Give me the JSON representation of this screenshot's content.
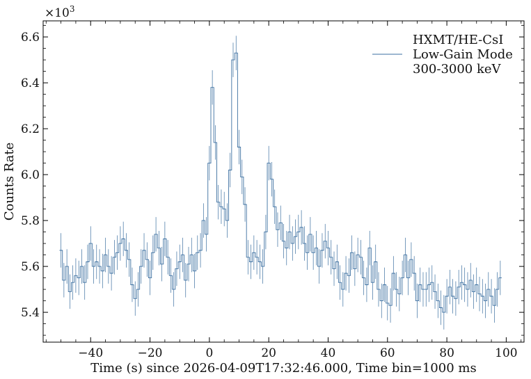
{
  "chart_data": {
    "type": "line",
    "drawstyle": "steps-mid",
    "xlabel": "Time (s) since 2026-04-09T17:32:46.000, Time bin=1000 ms",
    "ylabel": "Counts Rate",
    "y_offset_base": "×10",
    "y_offset_exp": "3",
    "xlim": [
      -56,
      106
    ],
    "ylim": [
      5.27,
      6.67
    ],
    "x_ticks": [
      -40,
      -20,
      0,
      20,
      40,
      60,
      80,
      100
    ],
    "x_tick_labels": [
      "−40",
      "−20",
      "0",
      "20",
      "40",
      "60",
      "80",
      "100"
    ],
    "x_minor_step": 5,
    "y_ticks": [
      5.4,
      5.6,
      5.8,
      6.0,
      6.2,
      6.4,
      6.6
    ],
    "y_tick_labels": [
      "5.4",
      "5.6",
      "5.8",
      "6.0",
      "6.2",
      "6.4",
      "6.6"
    ],
    "y_minor_step": 0.05,
    "grid": false,
    "legend": {
      "placement": "top-right",
      "lines": [
        "HXMT/HE-CsI",
        "Low-Gain Mode",
        "300-3000 keV"
      ]
    },
    "series": [
      {
        "color": "#3b6fa0",
        "error": 0.075,
        "x": [
          -50,
          -49,
          -48,
          -47,
          -46,
          -45,
          -44,
          -43,
          -42,
          -41,
          -40,
          -39,
          -38,
          -37,
          -36,
          -35,
          -34,
          -33,
          -32,
          -31,
          -30,
          -29,
          -28,
          -27,
          -26,
          -25,
          -24,
          -23,
          -22,
          -21,
          -20,
          -19,
          -18,
          -17,
          -16,
          -15,
          -14,
          -13,
          -12,
          -11,
          -10,
          -9,
          -8,
          -7,
          -6,
          -5,
          -4,
          -3,
          -2,
          -1,
          0,
          1,
          2,
          3,
          4,
          5,
          6,
          7,
          8,
          9,
          10,
          11,
          12,
          13,
          14,
          15,
          16,
          17,
          18,
          19,
          20,
          21,
          22,
          23,
          24,
          25,
          26,
          27,
          28,
          29,
          30,
          31,
          32,
          33,
          34,
          35,
          36,
          37,
          38,
          39,
          40,
          41,
          42,
          43,
          44,
          45,
          46,
          47,
          48,
          49,
          50,
          51,
          52,
          53,
          54,
          55,
          56,
          57,
          58,
          59,
          60,
          61,
          62,
          63,
          64,
          65,
          66,
          67,
          68,
          69,
          70,
          71,
          72,
          73,
          74,
          75,
          76,
          77,
          78,
          79,
          80,
          81,
          82,
          83,
          84,
          85,
          86,
          87,
          88,
          89,
          90,
          91,
          92,
          93,
          94,
          95,
          96,
          97,
          98
        ],
        "y": [
          5.67,
          5.54,
          5.6,
          5.49,
          5.53,
          5.56,
          5.55,
          5.6,
          5.53,
          5.62,
          5.7,
          5.6,
          5.62,
          5.6,
          5.58,
          5.65,
          5.6,
          5.57,
          5.64,
          5.66,
          5.7,
          5.72,
          5.67,
          5.63,
          5.52,
          5.46,
          5.5,
          5.6,
          5.67,
          5.63,
          5.55,
          5.66,
          5.74,
          5.68,
          5.61,
          5.72,
          5.64,
          5.56,
          5.5,
          5.59,
          5.62,
          5.65,
          5.54,
          5.61,
          5.65,
          5.58,
          5.66,
          5.67,
          5.8,
          5.74,
          6.05,
          6.38,
          6.14,
          5.88,
          5.86,
          5.85,
          5.8,
          6.02,
          6.5,
          6.53,
          6.12,
          5.99,
          5.87,
          5.64,
          5.62,
          5.66,
          5.64,
          5.62,
          5.6,
          5.75,
          6.05,
          5.98,
          5.86,
          5.76,
          5.79,
          5.71,
          5.68,
          5.75,
          5.7,
          5.73,
          5.75,
          5.77,
          5.7,
          5.66,
          5.74,
          5.66,
          5.68,
          5.6,
          5.67,
          5.71,
          5.68,
          5.64,
          5.59,
          5.62,
          5.53,
          5.5,
          5.57,
          5.56,
          5.66,
          5.59,
          5.65,
          5.64,
          5.55,
          5.52,
          5.68,
          5.53,
          5.62,
          5.5,
          5.45,
          5.52,
          5.44,
          5.43,
          5.57,
          5.5,
          5.48,
          5.55,
          5.65,
          5.55,
          5.63,
          5.57,
          5.45,
          5.52,
          5.5,
          5.5,
          5.52,
          5.53,
          5.49,
          5.45,
          5.42,
          5.4,
          5.47,
          5.51,
          5.47,
          5.46,
          5.51,
          5.53,
          5.52,
          5.5,
          5.54,
          5.49,
          5.52,
          5.48,
          5.47,
          5.45,
          5.5,
          5.47,
          5.43,
          5.5,
          5.55
        ]
      }
    ]
  }
}
